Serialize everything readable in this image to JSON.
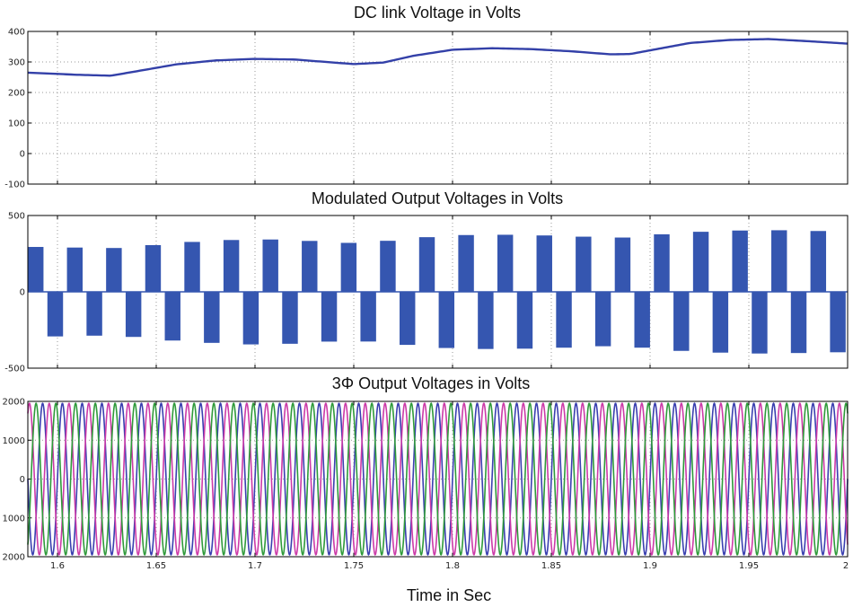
{
  "chart_data": [
    {
      "type": "line",
      "title": "DC link Voltage in Volts",
      "xlim": [
        1.585,
        2.0
      ],
      "ylim": [
        -100,
        400
      ],
      "yticks": [
        400,
        300,
        200,
        100,
        0,
        -100
      ],
      "grid": true,
      "series": [
        {
          "color": "#3340a8",
          "x": [
            1.585,
            1.61,
            1.627,
            1.645,
            1.66,
            1.68,
            1.7,
            1.72,
            1.74,
            1.75,
            1.765,
            1.78,
            1.8,
            1.82,
            1.84,
            1.86,
            1.88,
            1.89,
            1.9,
            1.92,
            1.94,
            1.96,
            1.98,
            2.0
          ],
          "y": [
            265,
            258,
            255,
            275,
            292,
            305,
            310,
            308,
            298,
            293,
            298,
            320,
            340,
            345,
            342,
            335,
            325,
            326,
            338,
            362,
            372,
            375,
            368,
            360
          ]
        }
      ]
    },
    {
      "type": "line",
      "title": "Modulated  Output Voltages in Volts",
      "xlim": [
        1.585,
        2.0
      ],
      "ylim": [
        -500,
        500
      ],
      "yticks": [
        500,
        0,
        -500
      ],
      "grid": true,
      "series": [
        {
          "color": "#3556b0",
          "segments": 21,
          "amplitude_x": [
            1.585,
            1.61,
            1.627,
            1.645,
            1.66,
            1.68,
            1.7,
            1.72,
            1.74,
            1.75,
            1.765,
            1.78,
            1.8,
            1.82,
            1.84,
            1.86,
            1.88,
            1.89,
            1.9,
            1.92,
            1.94,
            1.96,
            1.98,
            2.0
          ],
          "amplitude_y": [
            295,
            290,
            285,
            300,
            320,
            335,
            345,
            340,
            325,
            320,
            330,
            350,
            370,
            375,
            372,
            365,
            355,
            356,
            370,
            390,
            400,
            405,
            400,
            395
          ]
        }
      ]
    },
    {
      "type": "line",
      "title": "3Φ  Output Voltages in Volts",
      "xlim": [
        1.585,
        2.0
      ],
      "ylim": [
        -2000,
        2000
      ],
      "yticks": [
        "2000",
        "1000",
        "0",
        "1000",
        "2000"
      ],
      "xticks": [
        1.6,
        1.65,
        1.7,
        1.75,
        1.8,
        1.85,
        1.9,
        1.95,
        2.0
      ],
      "xticklabels": [
        "1.6",
        "1.65",
        "1.7",
        "1.75",
        "1.8",
        "1.85",
        "1.9",
        "1.95",
        "2"
      ],
      "xlabel": "Time in Sec",
      "grid": true,
      "series": [
        {
          "color": "#3a3fb0",
          "amplitude": 1950,
          "frequency_hz": 100,
          "phase_deg": 0
        },
        {
          "color": "#cc3aa8",
          "amplitude": 1950,
          "frequency_hz": 100,
          "phase_deg": -120
        },
        {
          "color": "#2f9a3a",
          "amplitude": 1950,
          "frequency_hz": 100,
          "phase_deg": 120
        }
      ]
    }
  ]
}
